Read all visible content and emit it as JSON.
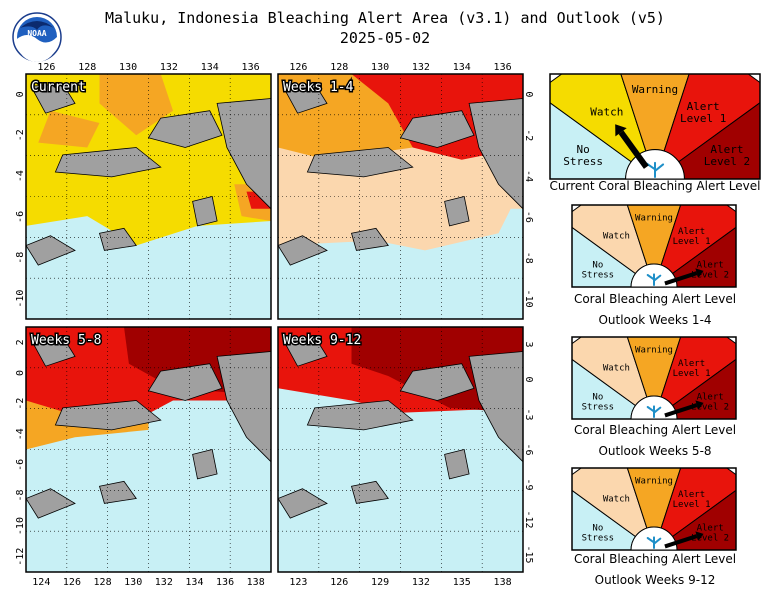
{
  "title": "Maluku, Indonesia Bleaching Alert Area (v3.1) and Outlook (v5)",
  "date": "2025-05-02",
  "logo_text": "NOAA",
  "colors": {
    "no_stress": "#c8f0f5",
    "watch": "#f5dc00",
    "watch_outlook": "#fbd7ae",
    "warning": "#f5a623",
    "alert1": "#e8140c",
    "alert2": "#a00000",
    "land": "#a0a0a0"
  },
  "panels": [
    {
      "label": "Current",
      "top_ticks": [
        "126",
        "128",
        "130",
        "132",
        "134",
        "136"
      ],
      "bottom_ticks": [],
      "left_ticks": [
        "0",
        "-2",
        "-4",
        "-6",
        "-8",
        "-10"
      ],
      "right_ticks": []
    },
    {
      "label": "Weeks 1-4",
      "top_ticks": [
        "126",
        "128",
        "130",
        "132",
        "134",
        "136"
      ],
      "bottom_ticks": [],
      "left_ticks": [],
      "right_ticks": [
        "0",
        "-2",
        "-4",
        "-6",
        "-8",
        "-10"
      ]
    },
    {
      "label": "Weeks 5-8",
      "top_ticks": [],
      "bottom_ticks": [
        "124",
        "126",
        "128",
        "130",
        "132",
        "134",
        "136",
        "138"
      ],
      "left_ticks": [
        "2",
        "0",
        "-2",
        "-4",
        "-6",
        "-8",
        "-10",
        "-12"
      ],
      "right_ticks": []
    },
    {
      "label": "Weeks 9-12",
      "top_ticks": [],
      "bottom_ticks": [
        "123",
        "126",
        "129",
        "132",
        "135",
        "138"
      ],
      "left_ticks": [],
      "right_ticks": [
        "3",
        "0",
        "-3",
        "-6",
        "-9",
        "-12",
        "-15"
      ]
    }
  ],
  "gauges": [
    {
      "labels": {
        "no_stress": "No Stress",
        "watch": "Watch",
        "warning": "Warning",
        "alert1": "Alert Level 1",
        "alert2": "Alert Level 2"
      },
      "current_level": "Watch",
      "caption_lines": [
        "Current Coral Bleaching Alert Level"
      ]
    },
    {
      "labels": {
        "no_stress": "No Stress",
        "watch": "Watch",
        "warning": "Warning",
        "alert1": "Alert Level 1",
        "alert2": "Alert Level 2"
      },
      "current_level": "Alert Level 2",
      "caption_lines": [
        "Coral Bleaching Alert Level",
        "Outlook Weeks 1-4"
      ]
    },
    {
      "labels": {
        "no_stress": "No Stress",
        "watch": "Watch",
        "warning": "Warning",
        "alert1": "Alert Level 1",
        "alert2": "Alert Level 2"
      },
      "current_level": "Alert Level 2",
      "caption_lines": [
        "Coral Bleaching Alert Level",
        "Outlook Weeks 5-8"
      ]
    },
    {
      "labels": {
        "no_stress": "No Stress",
        "watch": "Watch",
        "warning": "Warning",
        "alert1": "Alert Level 1",
        "alert2": "Alert Level 2"
      },
      "current_level": "Alert Level 2",
      "caption_lines": [
        "Coral Bleaching Alert Level",
        "Outlook Weeks 9-12"
      ]
    }
  ]
}
